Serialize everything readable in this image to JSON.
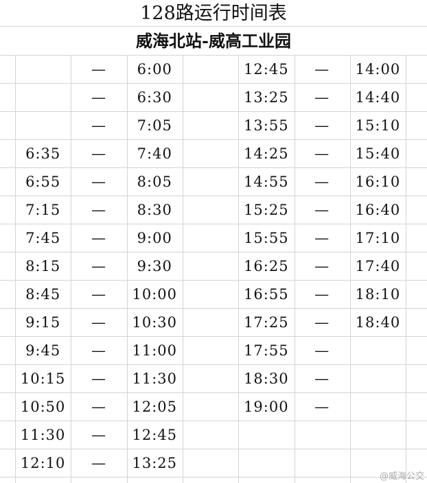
{
  "header": {
    "title": "128路运行时间表",
    "subtitle": "威海北站-威高工业园"
  },
  "table": {
    "rows": [
      [
        null,
        "—",
        "6:00",
        "12:45",
        "—",
        "14:00"
      ],
      [
        null,
        "—",
        "6:30",
        "13:25",
        "—",
        "14:40"
      ],
      [
        null,
        "—",
        "7:05",
        "13:55",
        "—",
        "15:10"
      ],
      [
        "6:35",
        "—",
        "7:40",
        "14:25",
        "—",
        "15:40"
      ],
      [
        "6:55",
        "—",
        "8:05",
        "14:55",
        "—",
        "16:10"
      ],
      [
        "7:15",
        "—",
        "8:30",
        "15:25",
        "—",
        "16:40"
      ],
      [
        "7:45",
        "—",
        "9:00",
        "15:55",
        "—",
        "17:10"
      ],
      [
        "8:15",
        "—",
        "9:30",
        "16:25",
        "—",
        "17:40"
      ],
      [
        "8:45",
        "—",
        "10:00",
        "16:55",
        "—",
        "18:10"
      ],
      [
        "9:15",
        "—",
        "10:30",
        "17:25",
        "—",
        "18:40"
      ],
      [
        "9:45",
        "—",
        "11:00",
        "17:55",
        "—",
        null
      ],
      [
        "10:15",
        "—",
        "11:30",
        "18:30",
        "—",
        null
      ],
      [
        "10:50",
        "—",
        "12:05",
        "19:00",
        "—",
        null
      ],
      [
        "11:30",
        "—",
        "12:45",
        null,
        null,
        null
      ],
      [
        "12:10",
        "—",
        "13:25",
        null,
        null,
        null
      ]
    ]
  },
  "watermark": "@威海公交"
}
